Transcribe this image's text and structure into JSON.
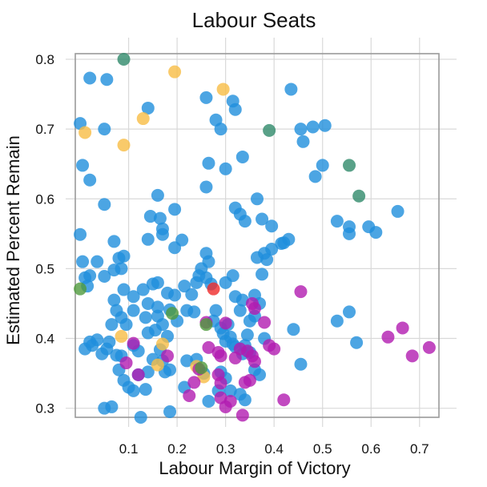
{
  "chart_data": {
    "type": "scatter",
    "title": "Labour Seats",
    "xlabel": "Labour Margin of Victory",
    "ylabel": "Estimated Percent Remain",
    "xlim": [
      -0.01,
      0.74
    ],
    "ylim": [
      0.287,
      0.808
    ],
    "x_ticks": [
      0.1,
      0.2,
      0.3,
      0.4,
      0.5,
      0.6,
      0.7
    ],
    "y_ticks": [
      0.3,
      0.4,
      0.5,
      0.6,
      0.7,
      0.8
    ],
    "grid": true,
    "legend": "none",
    "colors": {
      "blue": "#1f8fdc",
      "orange": "#f7bd45",
      "teal": "#2f8a6a",
      "magenta": "#b21cb0",
      "green": "#4f9a3c",
      "red": "#ef2a2a"
    },
    "series": [
      {
        "color": "#1f8fdc",
        "points": [
          [
            0.02,
            0.773
          ],
          [
            0.055,
            0.771
          ],
          [
            0.0,
            0.708
          ],
          [
            0.005,
            0.648
          ],
          [
            0.02,
            0.627
          ],
          [
            0.05,
            0.7
          ],
          [
            0.14,
            0.73
          ],
          [
            0.26,
            0.745
          ],
          [
            0.28,
            0.713
          ],
          [
            0.29,
            0.7
          ],
          [
            0.315,
            0.74
          ],
          [
            0.32,
            0.728
          ],
          [
            0.3,
            0.643
          ],
          [
            0.335,
            0.66
          ],
          [
            0.265,
            0.651
          ],
          [
            0.26,
            0.617
          ],
          [
            0.435,
            0.757
          ],
          [
            0.455,
            0.7
          ],
          [
            0.46,
            0.682
          ],
          [
            0.48,
            0.703
          ],
          [
            0.505,
            0.705
          ],
          [
            0.485,
            0.632
          ],
          [
            0.5,
            0.648
          ],
          [
            0.53,
            0.568
          ],
          [
            0.555,
            0.56
          ],
          [
            0.555,
            0.55
          ],
          [
            0.595,
            0.56
          ],
          [
            0.61,
            0.552
          ],
          [
            0.655,
            0.582
          ],
          [
            0.16,
            0.605
          ],
          [
            0.145,
            0.575
          ],
          [
            0.165,
            0.572
          ],
          [
            0.17,
            0.557
          ],
          [
            0.17,
            0.549
          ],
          [
            0.14,
            0.542
          ],
          [
            0.195,
            0.585
          ],
          [
            0.21,
            0.541
          ],
          [
            0.195,
            0.53
          ],
          [
            0.32,
            0.587
          ],
          [
            0.33,
            0.578
          ],
          [
            0.34,
            0.568
          ],
          [
            0.365,
            0.6
          ],
          [
            0.375,
            0.571
          ],
          [
            0.395,
            0.561
          ],
          [
            0.0,
            0.549
          ],
          [
            0.05,
            0.592
          ],
          [
            0.07,
            0.539
          ],
          [
            0.08,
            0.515
          ],
          [
            0.07,
            0.498
          ],
          [
            0.085,
            0.5
          ],
          [
            0.09,
            0.518
          ],
          [
            0.005,
            0.51
          ],
          [
            0.01,
            0.487
          ],
          [
            0.02,
            0.49
          ],
          [
            0.015,
            0.475
          ],
          [
            0.035,
            0.51
          ],
          [
            0.05,
            0.489
          ],
          [
            0.09,
            0.47
          ],
          [
            0.07,
            0.455
          ],
          [
            0.11,
            0.46
          ],
          [
            0.13,
            0.47
          ],
          [
            0.15,
            0.478
          ],
          [
            0.16,
            0.48
          ],
          [
            0.18,
            0.465
          ],
          [
            0.195,
            0.462
          ],
          [
            0.14,
            0.45
          ],
          [
            0.16,
            0.445
          ],
          [
            0.075,
            0.44
          ],
          [
            0.085,
            0.43
          ],
          [
            0.095,
            0.42
          ],
          [
            0.065,
            0.42
          ],
          [
            0.11,
            0.44
          ],
          [
            0.135,
            0.43
          ],
          [
            0.16,
            0.432
          ],
          [
            0.17,
            0.42
          ],
          [
            0.2,
            0.425
          ],
          [
            0.185,
            0.441
          ],
          [
            0.22,
            0.44
          ],
          [
            0.235,
            0.438
          ],
          [
            0.215,
            0.475
          ],
          [
            0.24,
            0.48
          ],
          [
            0.23,
            0.463
          ],
          [
            0.245,
            0.49
          ],
          [
            0.26,
            0.487
          ],
          [
            0.25,
            0.5
          ],
          [
            0.26,
            0.522
          ],
          [
            0.265,
            0.51
          ],
          [
            0.27,
            0.478
          ],
          [
            0.3,
            0.48
          ],
          [
            0.315,
            0.49
          ],
          [
            0.32,
            0.46
          ],
          [
            0.335,
            0.455
          ],
          [
            0.33,
            0.44
          ],
          [
            0.36,
            0.462
          ],
          [
            0.37,
            0.45
          ],
          [
            0.365,
            0.516
          ],
          [
            0.38,
            0.522
          ],
          [
            0.385,
            0.513
          ],
          [
            0.375,
            0.492
          ],
          [
            0.395,
            0.528
          ],
          [
            0.415,
            0.536
          ],
          [
            0.42,
            0.537
          ],
          [
            0.43,
            0.542
          ],
          [
            0.02,
            0.395
          ],
          [
            0.035,
            0.398
          ],
          [
            0.01,
            0.385
          ],
          [
            0.025,
            0.39
          ],
          [
            0.045,
            0.378
          ],
          [
            0.055,
            0.385
          ],
          [
            0.06,
            0.395
          ],
          [
            0.075,
            0.376
          ],
          [
            0.085,
            0.375
          ],
          [
            0.11,
            0.39
          ],
          [
            0.12,
            0.382
          ],
          [
            0.14,
            0.408
          ],
          [
            0.155,
            0.412
          ],
          [
            0.18,
            0.403
          ],
          [
            0.165,
            0.384
          ],
          [
            0.15,
            0.37
          ],
          [
            0.14,
            0.352
          ],
          [
            0.175,
            0.352
          ],
          [
            0.185,
            0.355
          ],
          [
            0.17,
            0.368
          ],
          [
            0.09,
            0.34
          ],
          [
            0.08,
            0.355
          ],
          [
            0.1,
            0.33
          ],
          [
            0.11,
            0.325
          ],
          [
            0.135,
            0.327
          ],
          [
            0.12,
            0.348
          ],
          [
            0.125,
            0.287
          ],
          [
            0.05,
            0.3
          ],
          [
            0.065,
            0.302
          ],
          [
            0.185,
            0.295
          ],
          [
            0.215,
            0.33
          ],
          [
            0.22,
            0.368
          ],
          [
            0.24,
            0.37
          ],
          [
            0.255,
            0.35
          ],
          [
            0.265,
            0.31
          ],
          [
            0.275,
            0.425
          ],
          [
            0.28,
            0.44
          ],
          [
            0.29,
            0.415
          ],
          [
            0.295,
            0.407
          ],
          [
            0.3,
            0.396
          ],
          [
            0.305,
            0.42
          ],
          [
            0.31,
            0.402
          ],
          [
            0.315,
            0.392
          ],
          [
            0.32,
            0.388
          ],
          [
            0.335,
            0.378
          ],
          [
            0.34,
            0.39
          ],
          [
            0.345,
            0.405
          ],
          [
            0.35,
            0.38
          ],
          [
            0.29,
            0.352
          ],
          [
            0.3,
            0.343
          ],
          [
            0.285,
            0.325
          ],
          [
            0.31,
            0.325
          ],
          [
            0.33,
            0.32
          ],
          [
            0.34,
            0.312
          ],
          [
            0.36,
            0.355
          ],
          [
            0.37,
            0.348
          ],
          [
            0.38,
            0.4
          ],
          [
            0.36,
            0.432
          ],
          [
            0.35,
            0.425
          ],
          [
            0.44,
            0.413
          ],
          [
            0.455,
            0.363
          ],
          [
            0.53,
            0.425
          ],
          [
            0.555,
            0.438
          ],
          [
            0.57,
            0.394
          ]
        ]
      },
      {
        "color": "#f7bd45",
        "points": [
          [
            0.195,
            0.782
          ],
          [
            0.295,
            0.757
          ],
          [
            0.13,
            0.715
          ],
          [
            0.01,
            0.695
          ],
          [
            0.09,
            0.677
          ],
          [
            0.085,
            0.403
          ],
          [
            0.17,
            0.392
          ],
          [
            0.16,
            0.362
          ],
          [
            0.24,
            0.36
          ],
          [
            0.255,
            0.345
          ]
        ]
      },
      {
        "color": "#2f8a6a",
        "points": [
          [
            0.09,
            0.8
          ],
          [
            0.39,
            0.698
          ],
          [
            0.555,
            0.648
          ],
          [
            0.575,
            0.604
          ]
        ]
      },
      {
        "color": "#b21cb0",
        "points": [
          [
            0.455,
            0.467
          ],
          [
            0.355,
            0.45
          ],
          [
            0.36,
            0.443
          ],
          [
            0.38,
            0.423
          ],
          [
            0.26,
            0.423
          ],
          [
            0.3,
            0.422
          ],
          [
            0.635,
            0.402
          ],
          [
            0.665,
            0.415
          ],
          [
            0.685,
            0.375
          ],
          [
            0.72,
            0.387
          ],
          [
            0.39,
            0.39
          ],
          [
            0.4,
            0.385
          ],
          [
            0.11,
            0.393
          ],
          [
            0.095,
            0.365
          ],
          [
            0.18,
            0.375
          ],
          [
            0.265,
            0.387
          ],
          [
            0.285,
            0.38
          ],
          [
            0.29,
            0.375
          ],
          [
            0.32,
            0.372
          ],
          [
            0.33,
            0.385
          ],
          [
            0.345,
            0.382
          ],
          [
            0.355,
            0.375
          ],
          [
            0.36,
            0.367
          ],
          [
            0.12,
            0.348
          ],
          [
            0.245,
            0.356
          ],
          [
            0.285,
            0.348
          ],
          [
            0.29,
            0.336
          ],
          [
            0.235,
            0.337
          ],
          [
            0.225,
            0.318
          ],
          [
            0.29,
            0.315
          ],
          [
            0.3,
            0.302
          ],
          [
            0.31,
            0.31
          ],
          [
            0.335,
            0.29
          ],
          [
            0.34,
            0.337
          ],
          [
            0.35,
            0.34
          ],
          [
            0.42,
            0.312
          ]
        ]
      },
      {
        "color": "#4f9a3c",
        "points": [
          [
            0.0,
            0.471
          ],
          [
            0.19,
            0.436
          ],
          [
            0.26,
            0.42
          ],
          [
            0.25,
            0.358
          ]
        ]
      },
      {
        "color": "#ef2a2a",
        "points": [
          [
            0.275,
            0.471
          ]
        ]
      }
    ]
  }
}
